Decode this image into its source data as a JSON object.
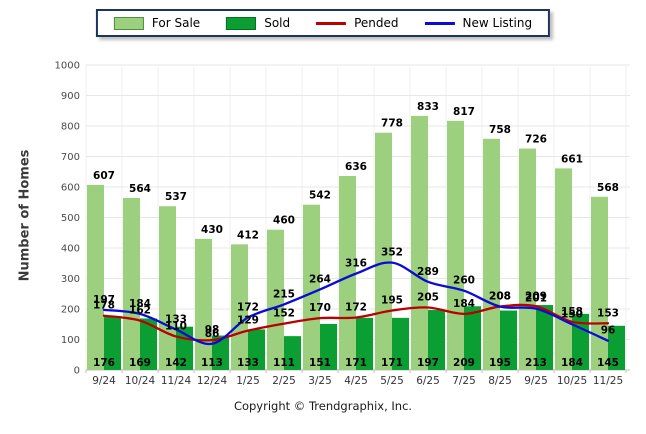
{
  "legend": {
    "items": [
      {
        "label": "For Sale",
        "swatch": "bar",
        "color": "#9cd07e",
        "border": "#4e8f3f"
      },
      {
        "label": "Sold",
        "swatch": "bar",
        "color": "#0b9f33",
        "border": "#056d22"
      },
      {
        "label": "Pended",
        "swatch": "line",
        "color": "#ba0000"
      },
      {
        "label": "New Listing",
        "swatch": "line",
        "color": "#0b0bd6"
      }
    ]
  },
  "footer": {
    "copyright": "Copyright © Trendgraphix, Inc."
  },
  "chart_data": {
    "type": "bar",
    "subtype": "grouped bars with smoothed overlay lines",
    "title": "",
    "xlabel": "",
    "ylabel": "Number of Homes",
    "ylim": [
      0,
      1000
    ],
    "ytick_step": 100,
    "grid": true,
    "legend_position": "top-center",
    "categories": [
      "9/24",
      "10/24",
      "11/24",
      "12/24",
      "1/25",
      "2/25",
      "3/25",
      "4/25",
      "5/25",
      "6/25",
      "7/25",
      "8/25",
      "9/25",
      "10/25",
      "11/25"
    ],
    "series": [
      {
        "name": "For Sale",
        "type": "bar",
        "color": "#9cd07e",
        "values": [
          607,
          564,
          537,
          430,
          412,
          460,
          542,
          636,
          778,
          833,
          817,
          758,
          726,
          661,
          568
        ]
      },
      {
        "name": "Sold",
        "type": "bar",
        "color": "#0b9f33",
        "values": [
          176,
          169,
          142,
          113,
          133,
          111,
          151,
          171,
          171,
          197,
          209,
          195,
          213,
          184,
          145
        ]
      },
      {
        "name": "Pended",
        "type": "line",
        "color": "#ba0000",
        "values": [
          178,
          162,
          110,
          98,
          129,
          152,
          170,
          172,
          195,
          205,
          184,
          208,
          209,
          158,
          153
        ]
      },
      {
        "name": "New Listing",
        "type": "line",
        "color": "#0b0bd6",
        "values": [
          197,
          184,
          133,
          86,
          172,
          215,
          264,
          316,
          352,
          289,
          260,
          208,
          201,
          150,
          96
        ]
      }
    ]
  }
}
